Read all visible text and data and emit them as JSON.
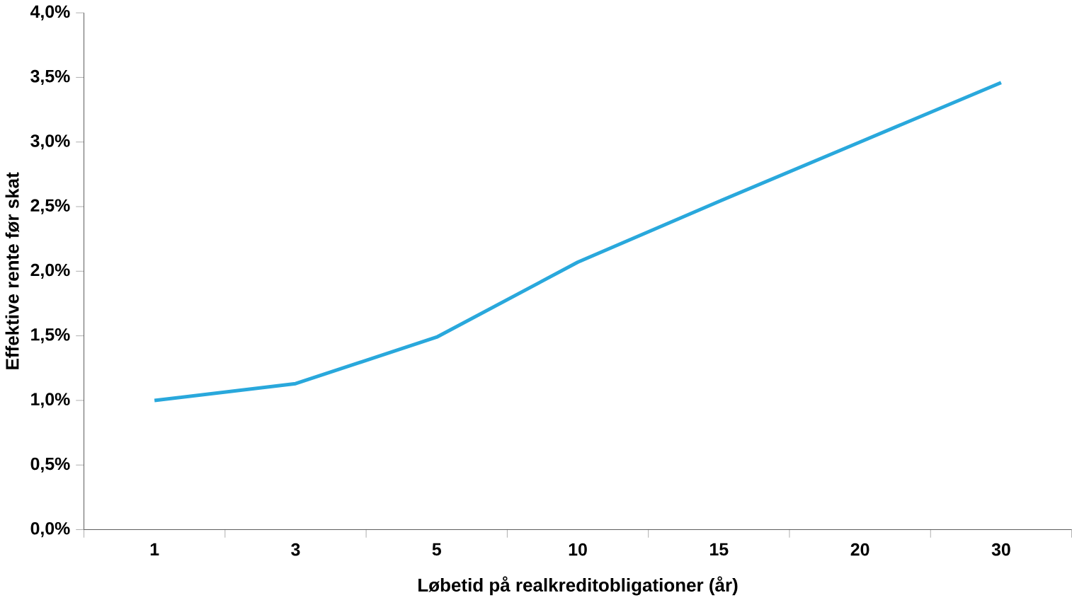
{
  "chart_data": {
    "type": "line",
    "xlabel": "Løbetid på realkreditobligationer  (år)",
    "ylabel": "Effektive  rente før skat",
    "categories": [
      "1",
      "3",
      "5",
      "10",
      "15",
      "20",
      "30"
    ],
    "series": [
      {
        "color": "#29a8dc",
        "values": [
          1.0,
          1.13,
          1.49,
          2.07,
          2.54,
          3.0,
          3.46
        ]
      }
    ],
    "ylim": [
      0,
      4
    ],
    "yticks": [
      {
        "value": 0,
        "label": "0,0%"
      },
      {
        "value": 0.5,
        "label": "0,5%"
      },
      {
        "value": 1,
        "label": "1,0%"
      },
      {
        "value": 1.5,
        "label": "1,5%"
      },
      {
        "value": 2,
        "label": "2,0%"
      },
      {
        "value": 2.5,
        "label": "2,5%"
      },
      {
        "value": 3,
        "label": "3,0%"
      },
      {
        "value": 3.5,
        "label": "3,5%"
      },
      {
        "value": 4,
        "label": "4,0%"
      }
    ],
    "grid": false,
    "marker": "none",
    "line_style": "solid"
  }
}
